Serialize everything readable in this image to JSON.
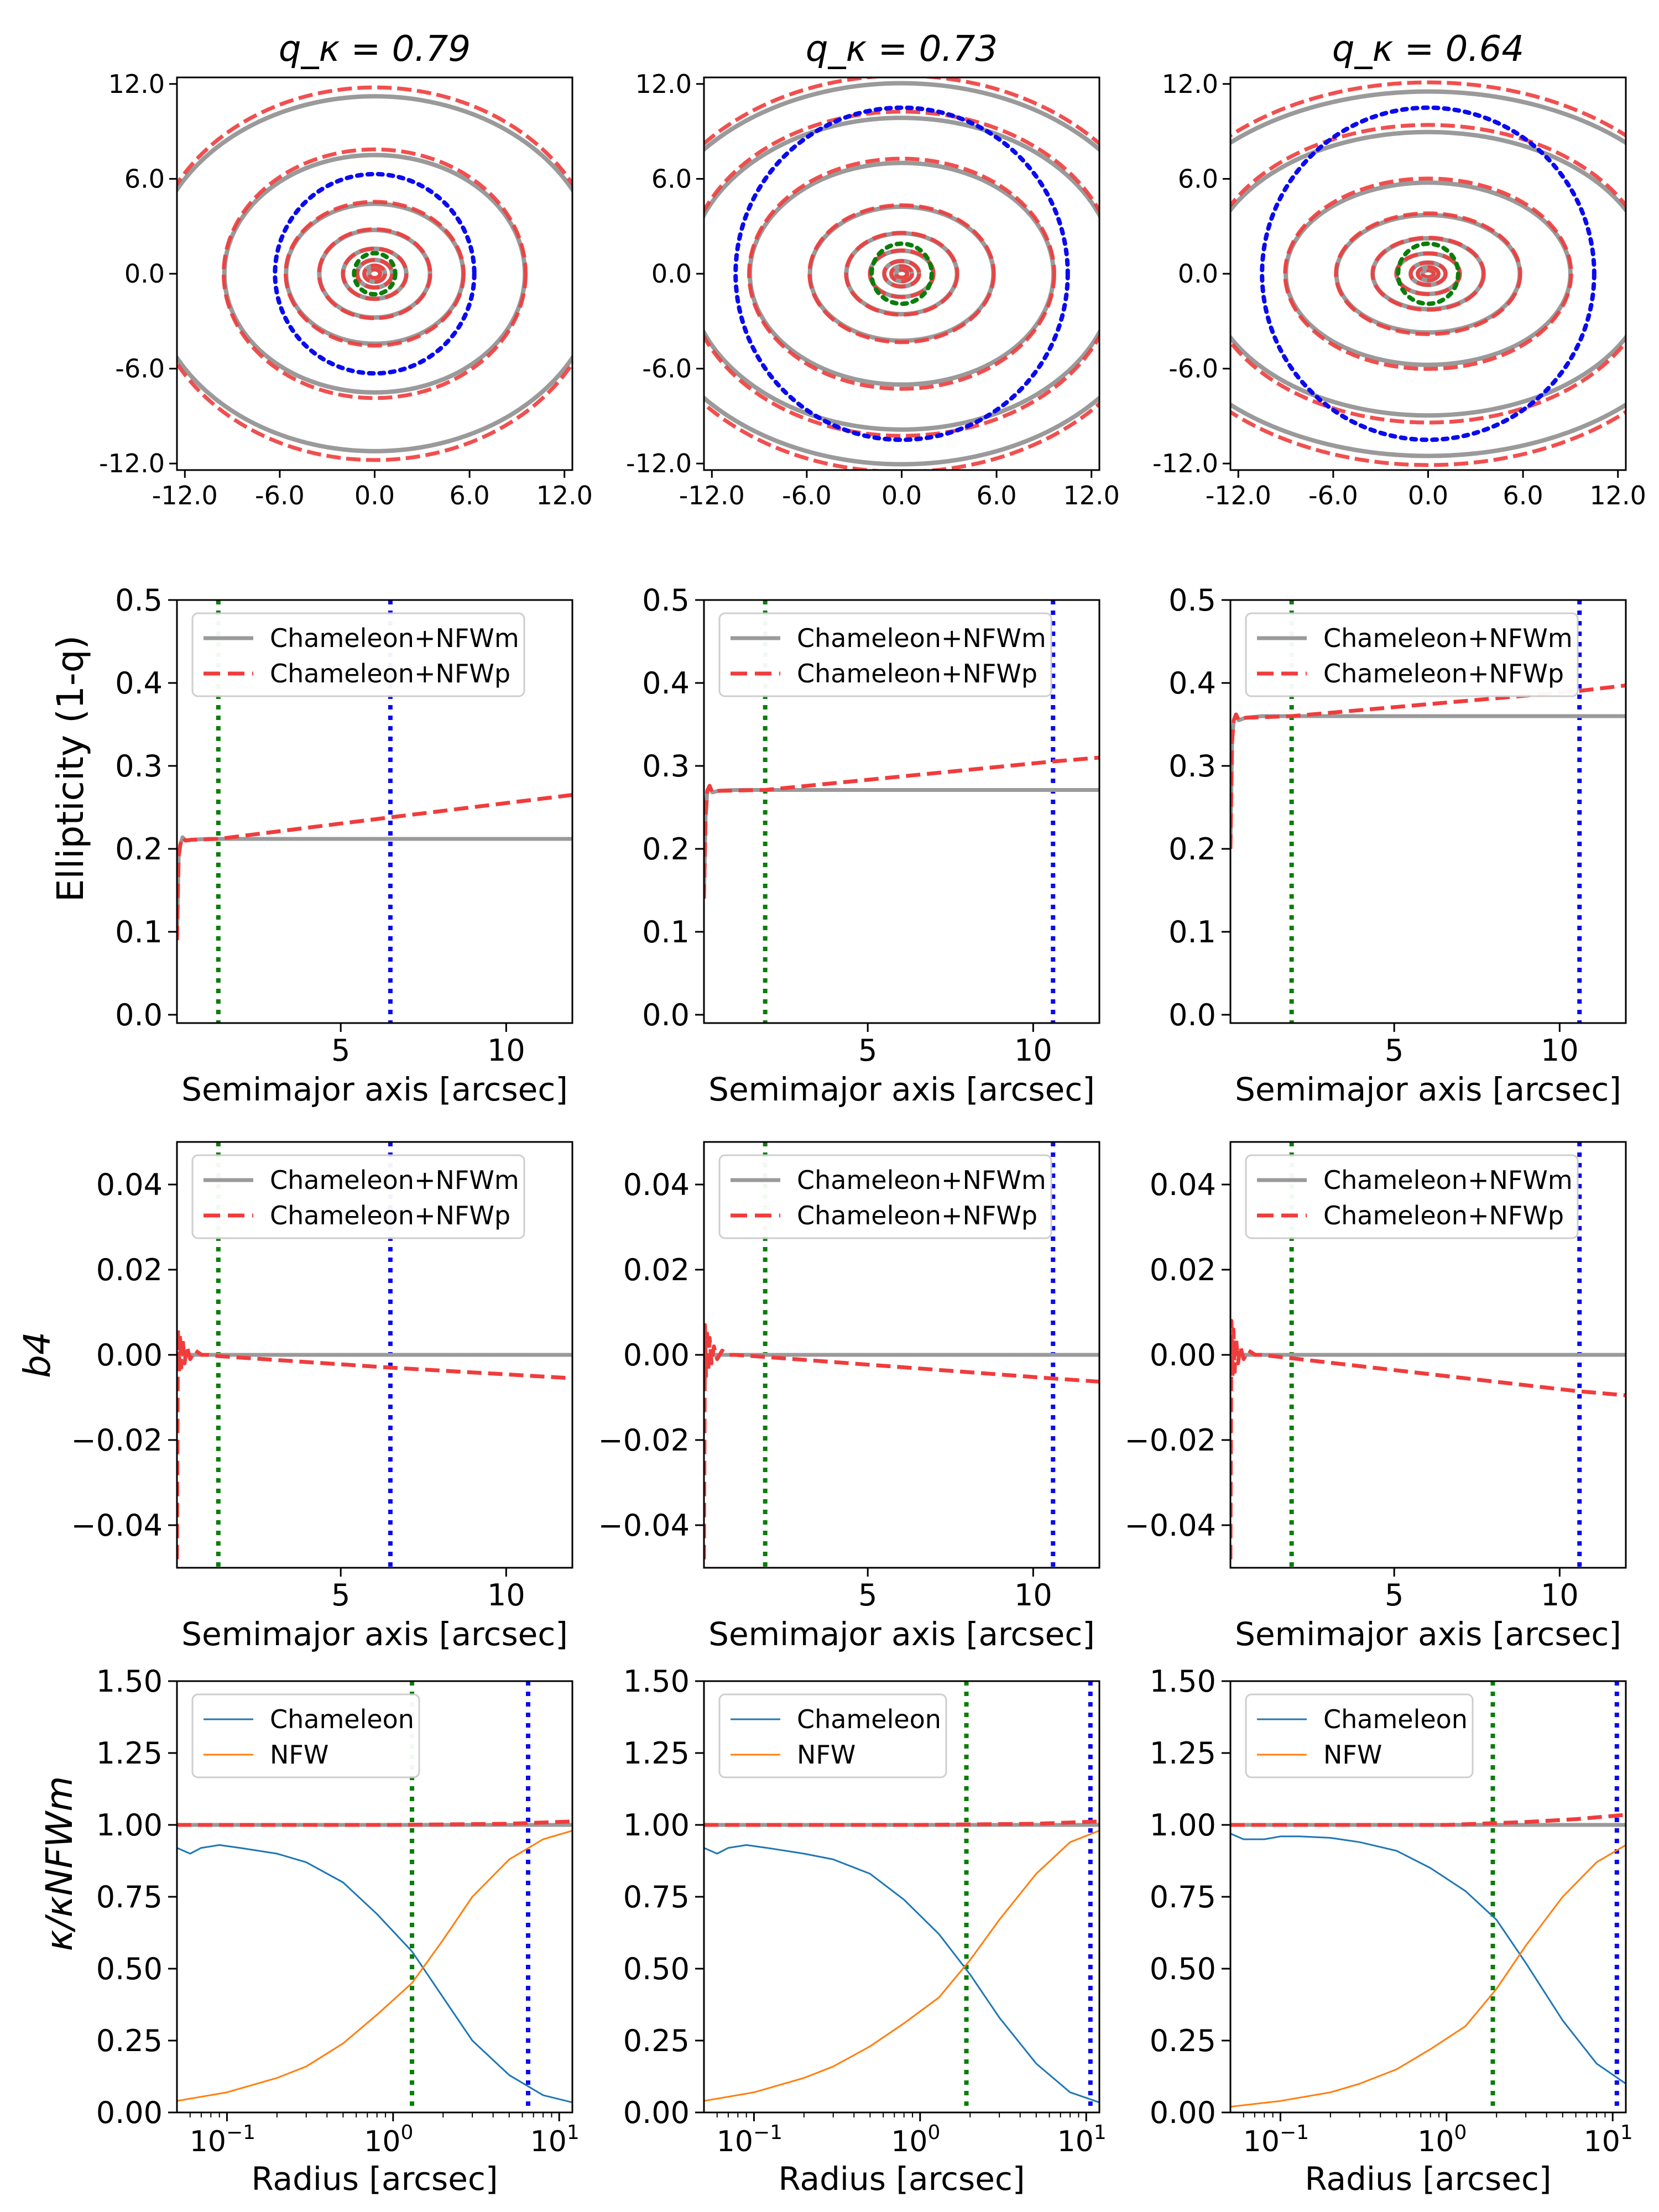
{
  "figure": {
    "row_labels": {
      "ellipticity": "Ellipticity (1-q)",
      "b4": "b4",
      "kappa_ratio": "κ/κNFWm"
    }
  },
  "colors": {
    "gray": "#9a9a9a",
    "red": "#f03c3c",
    "blue": "#0a0af0",
    "green": "#0a7d0a",
    "chameleon": "#1f77b4",
    "nfw": "#ff7f0e"
  },
  "chart_data": [
    {
      "type": "contour",
      "panel": "r0c0",
      "title": "q_κ = 0.79",
      "q": 0.79,
      "xlim": [
        -12.5,
        12.5
      ],
      "ylim": [
        -12.5,
        12.5
      ],
      "xticks": [
        "-12.0",
        "-6.0",
        "0.0",
        "6.0",
        "12.0"
      ],
      "yticks": [
        "12.0",
        "6.0",
        "0.0",
        "-6.0",
        "-12.0"
      ],
      "semimajor_levels": [
        0.35,
        0.65,
        1.1,
        2.0,
        3.5,
        5.6,
        9.5,
        14.2
      ],
      "red_q_growth": 0.05,
      "green_radius": 1.3,
      "blue_radius": 6.3
    },
    {
      "type": "contour",
      "panel": "r0c1",
      "title": "q_κ = 0.73",
      "q": 0.73,
      "xlim": [
        -12.5,
        12.5
      ],
      "ylim": [
        -12.5,
        12.5
      ],
      "xticks": [
        "-12.0",
        "-6.0",
        "0.0",
        "6.0",
        "12.0"
      ],
      "yticks": [
        "12.0",
        "6.0",
        "0.0",
        "-6.0",
        "-12.0"
      ],
      "semimajor_levels": [
        0.35,
        0.65,
        1.1,
        2.0,
        3.5,
        5.8,
        9.6,
        13.5,
        16.5
      ],
      "red_q_growth": 0.04,
      "green_radius": 1.9,
      "blue_radius": 10.5
    },
    {
      "type": "contour",
      "panel": "r0c2",
      "title": "q_κ = 0.64",
      "q": 0.64,
      "xlim": [
        -12.5,
        12.5
      ],
      "ylim": [
        -12.5,
        12.5
      ],
      "xticks": [
        "-12.0",
        "-6.0",
        "0.0",
        "6.0",
        "12.0"
      ],
      "yticks": [
        "12.0",
        "6.0",
        "0.0",
        "-6.0",
        "-12.0"
      ],
      "semimajor_levels": [
        0.35,
        0.65,
        1.1,
        2.0,
        3.5,
        5.8,
        9.0,
        14.0,
        18.0
      ],
      "red_q_growth": 0.05,
      "green_radius": 1.9,
      "blue_radius": 10.5
    },
    {
      "type": "line",
      "panel": "r1c0",
      "xlabel": "Semimajor axis [arcsec]",
      "ylabel": "Ellipticity (1-q)",
      "xlim": [
        0.05,
        12
      ],
      "ylim": [
        -0.01,
        0.5
      ],
      "xticks": [
        5,
        10
      ],
      "yticks": [
        "0.0",
        "0.1",
        "0.2",
        "0.3",
        "0.4",
        "0.5"
      ],
      "legend": [
        "Chameleon+NFWm",
        "Chameleon+NFWp"
      ],
      "series": [
        {
          "name": "Chameleon+NFWm",
          "x": [
            0.05,
            0.1,
            0.15,
            0.22,
            0.3,
            0.5,
            1,
            12
          ],
          "y": [
            0.09,
            0.19,
            0.205,
            0.214,
            0.21,
            0.211,
            0.212,
            0.212
          ]
        },
        {
          "name": "Chameleon+NFWp",
          "x": [
            0.05,
            0.1,
            0.15,
            0.22,
            0.3,
            0.5,
            1.3,
            6.5,
            12
          ],
          "y": [
            0.09,
            0.19,
            0.205,
            0.214,
            0.21,
            0.211,
            0.212,
            0.238,
            0.265
          ]
        }
      ],
      "vlines": {
        "green": 1.3,
        "blue": 6.5
      }
    },
    {
      "type": "line",
      "panel": "r1c1",
      "xlabel": "Semimajor axis [arcsec]",
      "xlim": [
        0.05,
        12
      ],
      "ylim": [
        -0.01,
        0.5
      ],
      "xticks": [
        5,
        10
      ],
      "yticks": [
        "0.0",
        "0.1",
        "0.2",
        "0.3",
        "0.4",
        "0.5"
      ],
      "legend": [
        "Chameleon+NFWm",
        "Chameleon+NFWp"
      ],
      "series": [
        {
          "name": "Chameleon+NFWm",
          "x": [
            0.05,
            0.1,
            0.15,
            0.22,
            0.3,
            0.5,
            1,
            12
          ],
          "y": [
            0.14,
            0.24,
            0.27,
            0.276,
            0.268,
            0.27,
            0.271,
            0.271
          ]
        },
        {
          "name": "Chameleon+NFWp",
          "x": [
            0.05,
            0.1,
            0.15,
            0.22,
            0.3,
            0.5,
            1.9,
            10.5,
            12
          ],
          "y": [
            0.14,
            0.24,
            0.27,
            0.276,
            0.268,
            0.27,
            0.271,
            0.305,
            0.31
          ]
        }
      ],
      "vlines": {
        "green": 1.9,
        "blue": 10.6
      }
    },
    {
      "type": "line",
      "panel": "r1c2",
      "xlabel": "Semimajor axis [arcsec]",
      "xlim": [
        0.05,
        12
      ],
      "ylim": [
        -0.01,
        0.5
      ],
      "xticks": [
        5,
        10
      ],
      "yticks": [
        "0.0",
        "0.1",
        "0.2",
        "0.3",
        "0.4",
        "0.5"
      ],
      "legend": [
        "Chameleon+NFWm",
        "Chameleon+NFWp"
      ],
      "series": [
        {
          "name": "Chameleon+NFWm",
          "x": [
            0.05,
            0.1,
            0.15,
            0.22,
            0.3,
            0.5,
            1,
            12
          ],
          "y": [
            0.2,
            0.33,
            0.355,
            0.362,
            0.355,
            0.358,
            0.36,
            0.36
          ]
        },
        {
          "name": "Chameleon+NFWp",
          "x": [
            0.05,
            0.1,
            0.15,
            0.22,
            0.3,
            0.5,
            1.9,
            10.5,
            12
          ],
          "y": [
            0.2,
            0.33,
            0.355,
            0.362,
            0.355,
            0.358,
            0.36,
            0.39,
            0.397
          ]
        }
      ],
      "vlines": {
        "green": 1.9,
        "blue": 10.6
      }
    },
    {
      "type": "line",
      "panel": "r2c0",
      "xlabel": "Semimajor axis [arcsec]",
      "ylabel": "b4",
      "xlim": [
        0.05,
        12
      ],
      "ylim": [
        -0.05,
        0.05
      ],
      "xticks": [
        5,
        10
      ],
      "yticks": [
        "0.04",
        "0.02",
        "0.00",
        "−0.02",
        "−0.04"
      ],
      "ytick_values": [
        0.04,
        0.02,
        0,
        -0.02,
        -0.04
      ],
      "legend": [
        "Chameleon+NFWm",
        "Chameleon+NFWp"
      ],
      "series": [
        {
          "name": "Chameleon+NFWm",
          "x": [
            0.05,
            12
          ],
          "y": [
            0,
            0
          ]
        },
        {
          "name": "Chameleon+NFWp",
          "x": [
            0.05,
            0.08,
            0.11,
            0.14,
            0.18,
            0.22,
            0.28,
            0.35,
            0.45,
            0.6,
            0.8,
            1.0,
            1.3,
            6.5,
            12
          ],
          "y": [
            -0.048,
            0.006,
            -0.004,
            0.005,
            -0.003,
            0.004,
            -0.002,
            0.002,
            -0.001,
            0.001,
            0.0,
            0.0,
            -0.0003,
            -0.003,
            -0.0055
          ]
        }
      ],
      "vlines": {
        "green": 1.3,
        "blue": 6.5
      }
    },
    {
      "type": "line",
      "panel": "r2c1",
      "xlabel": "Semimajor axis [arcsec]",
      "xlim": [
        0.05,
        12
      ],
      "ylim": [
        -0.05,
        0.05
      ],
      "xticks": [
        5,
        10
      ],
      "yticks": [
        "0.04",
        "0.02",
        "0.00",
        "−0.02",
        "−0.04"
      ],
      "ytick_values": [
        0.04,
        0.02,
        0,
        -0.02,
        -0.04
      ],
      "legend": [
        "Chameleon+NFWm",
        "Chameleon+NFWp"
      ],
      "series": [
        {
          "name": "Chameleon+NFWm",
          "x": [
            0.05,
            12
          ],
          "y": [
            0,
            0
          ]
        },
        {
          "name": "Chameleon+NFWp",
          "x": [
            0.05,
            0.08,
            0.11,
            0.14,
            0.18,
            0.22,
            0.28,
            0.35,
            0.45,
            0.6,
            0.8,
            1.0,
            1.9,
            10.5,
            12
          ],
          "y": [
            -0.048,
            0.007,
            -0.005,
            0.006,
            -0.004,
            0.004,
            -0.002,
            0.002,
            -0.001,
            0.001,
            0.0,
            0.0,
            -0.0005,
            -0.0055,
            -0.0063
          ]
        }
      ],
      "vlines": {
        "green": 1.9,
        "blue": 10.6
      }
    },
    {
      "type": "line",
      "panel": "r2c2",
      "xlabel": "Semimajor axis [arcsec]",
      "xlim": [
        0.05,
        12
      ],
      "ylim": [
        -0.05,
        0.05
      ],
      "xticks": [
        5,
        10
      ],
      "yticks": [
        "0.04",
        "0.02",
        "0.00",
        "−0.02",
        "−0.04"
      ],
      "ytick_values": [
        0.04,
        0.02,
        0,
        -0.02,
        -0.04
      ],
      "legend": [
        "Chameleon+NFWm",
        "Chameleon+NFWp"
      ],
      "series": [
        {
          "name": "Chameleon+NFWm",
          "x": [
            0.05,
            12
          ],
          "y": [
            0,
            0
          ]
        },
        {
          "name": "Chameleon+NFWp",
          "x": [
            0.05,
            0.08,
            0.11,
            0.14,
            0.18,
            0.22,
            0.28,
            0.35,
            0.45,
            0.6,
            0.8,
            1.0,
            1.9,
            10.5,
            12
          ],
          "y": [
            -0.048,
            0.008,
            -0.005,
            0.006,
            -0.004,
            0.004,
            -0.002,
            0.002,
            -0.001,
            0.001,
            0.0,
            0.0,
            -0.0008,
            -0.0085,
            -0.0095
          ]
        }
      ],
      "vlines": {
        "green": 1.9,
        "blue": 10.6
      }
    },
    {
      "type": "line",
      "panel": "r3c0",
      "xlabel": "Radius [arcsec]",
      "ylabel": "κ/κNFWm",
      "xscale": "log",
      "xlim": [
        0.05,
        12
      ],
      "ylim": [
        0,
        1.5
      ],
      "xticks": [
        0.1,
        1,
        10
      ],
      "yticks": [
        "1.50",
        "1.25",
        "1.00",
        "0.75",
        "0.50",
        "0.25",
        "0.00"
      ],
      "ytick_values": [
        1.5,
        1.25,
        1.0,
        0.75,
        0.5,
        0.25,
        0
      ],
      "legend": [
        "Chameleon",
        "NFW"
      ],
      "series": [
        {
          "name": "Chameleon",
          "x": [
            0.05,
            0.06,
            0.07,
            0.09,
            0.12,
            0.2,
            0.3,
            0.5,
            0.8,
            1.3,
            2,
            3,
            5,
            8,
            12
          ],
          "y": [
            0.92,
            0.9,
            0.92,
            0.93,
            0.92,
            0.9,
            0.87,
            0.8,
            0.69,
            0.56,
            0.4,
            0.25,
            0.13,
            0.06,
            0.035
          ]
        },
        {
          "name": "NFW",
          "x": [
            0.05,
            0.1,
            0.2,
            0.3,
            0.5,
            0.8,
            1.3,
            2,
            3,
            5,
            8,
            12
          ],
          "y": [
            0.04,
            0.07,
            0.12,
            0.16,
            0.24,
            0.34,
            0.45,
            0.6,
            0.75,
            0.88,
            0.95,
            0.98
          ]
        },
        {
          "name": "Chameleon+NFWm",
          "x": [
            0.05,
            12
          ],
          "y": [
            1.0,
            1.0
          ]
        },
        {
          "name": "Chameleon+NFWp",
          "x": [
            0.05,
            1,
            5,
            12
          ],
          "y": [
            1.0,
            1.0,
            1.004,
            1.012
          ]
        }
      ],
      "vlines": {
        "green": 1.3,
        "blue": 6.5
      }
    },
    {
      "type": "line",
      "panel": "r3c1",
      "xlabel": "Radius [arcsec]",
      "xscale": "log",
      "xlim": [
        0.05,
        12
      ],
      "ylim": [
        0,
        1.5
      ],
      "xticks": [
        0.1,
        1,
        10
      ],
      "yticks": [
        "1.50",
        "1.25",
        "1.00",
        "0.75",
        "0.50",
        "0.25",
        "0.00"
      ],
      "ytick_values": [
        1.5,
        1.25,
        1.0,
        0.75,
        0.5,
        0.25,
        0
      ],
      "legend": [
        "Chameleon",
        "NFW"
      ],
      "series": [
        {
          "name": "Chameleon",
          "x": [
            0.05,
            0.06,
            0.07,
            0.09,
            0.12,
            0.2,
            0.3,
            0.5,
            0.8,
            1.3,
            2,
            3,
            5,
            8,
            12
          ],
          "y": [
            0.92,
            0.9,
            0.92,
            0.93,
            0.92,
            0.9,
            0.88,
            0.83,
            0.74,
            0.62,
            0.48,
            0.33,
            0.17,
            0.07,
            0.035
          ]
        },
        {
          "name": "NFW",
          "x": [
            0.05,
            0.1,
            0.2,
            0.3,
            0.5,
            0.8,
            1.3,
            2,
            3,
            5,
            8,
            12
          ],
          "y": [
            0.04,
            0.07,
            0.12,
            0.16,
            0.23,
            0.31,
            0.4,
            0.53,
            0.67,
            0.83,
            0.94,
            0.98
          ]
        },
        {
          "name": "Chameleon+NFWm",
          "x": [
            0.05,
            12
          ],
          "y": [
            1.0,
            1.0
          ]
        },
        {
          "name": "Chameleon+NFWp",
          "x": [
            0.05,
            1,
            5,
            12
          ],
          "y": [
            1.0,
            1.0,
            1.004,
            1.012
          ]
        }
      ],
      "vlines": {
        "green": 1.9,
        "blue": 10.6
      }
    },
    {
      "type": "line",
      "panel": "r3c2",
      "xlabel": "Radius [arcsec]",
      "xscale": "log",
      "xlim": [
        0.05,
        12
      ],
      "ylim": [
        0,
        1.5
      ],
      "xticks": [
        0.1,
        1,
        10
      ],
      "yticks": [
        "1.50",
        "1.25",
        "1.00",
        "0.75",
        "0.50",
        "0.25",
        "0.00"
      ],
      "ytick_values": [
        1.5,
        1.25,
        1.0,
        0.75,
        0.5,
        0.25,
        0
      ],
      "legend": [
        "Chameleon",
        "NFW"
      ],
      "series": [
        {
          "name": "Chameleon",
          "x": [
            0.05,
            0.06,
            0.08,
            0.1,
            0.13,
            0.2,
            0.3,
            0.5,
            0.8,
            1.3,
            2,
            3,
            5,
            8,
            12
          ],
          "y": [
            0.97,
            0.95,
            0.95,
            0.96,
            0.96,
            0.955,
            0.94,
            0.91,
            0.85,
            0.77,
            0.67,
            0.52,
            0.32,
            0.17,
            0.1
          ]
        },
        {
          "name": "NFW",
          "x": [
            0.05,
            0.1,
            0.2,
            0.3,
            0.5,
            0.8,
            1.3,
            2,
            3,
            5,
            8,
            12
          ],
          "y": [
            0.02,
            0.04,
            0.07,
            0.1,
            0.15,
            0.22,
            0.3,
            0.43,
            0.58,
            0.75,
            0.87,
            0.93
          ]
        },
        {
          "name": "Chameleon+NFWm",
          "x": [
            0.05,
            12
          ],
          "y": [
            1.0,
            1.0
          ]
        },
        {
          "name": "Chameleon+NFWp",
          "x": [
            0.05,
            1,
            3,
            6,
            12
          ],
          "y": [
            1.0,
            1.0,
            1.01,
            1.02,
            1.035
          ]
        }
      ],
      "vlines": {
        "green": 1.9,
        "blue": 10.6
      }
    }
  ]
}
